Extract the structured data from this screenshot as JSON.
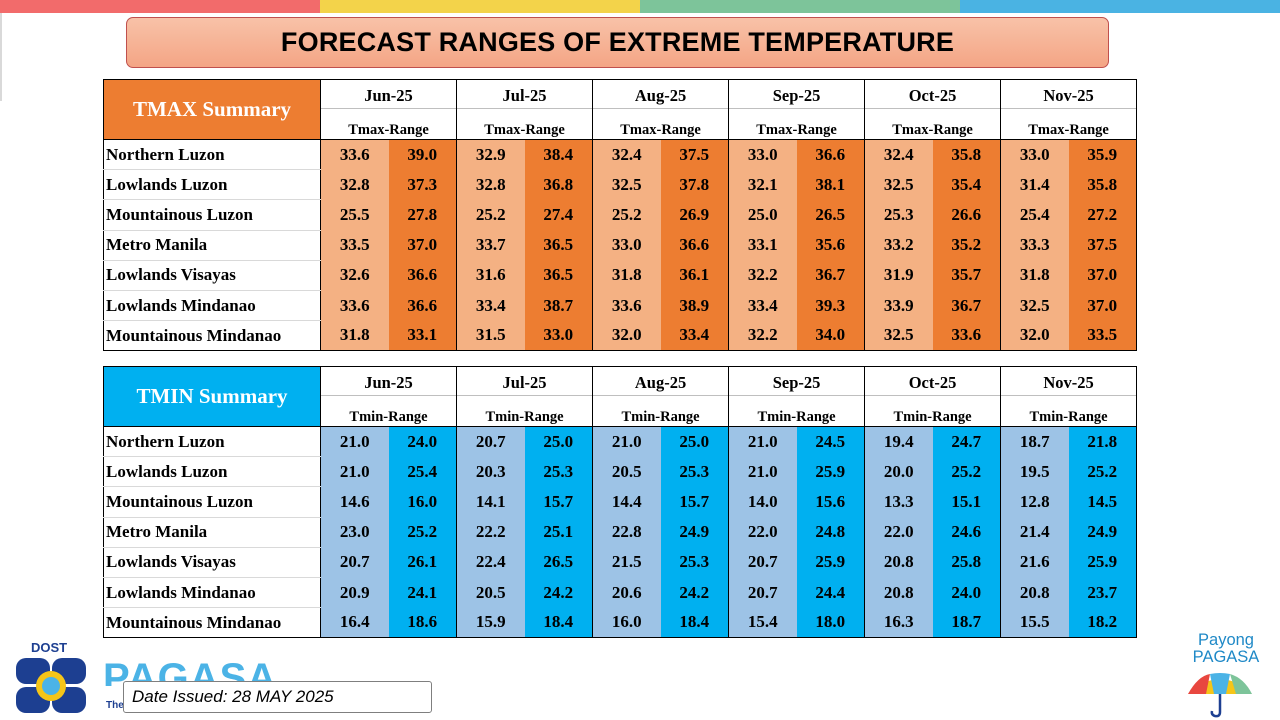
{
  "top_bar_colors": [
    "#f26b6b",
    "#f3d34a",
    "#7dc49a",
    "#4ab3e3"
  ],
  "title": "FORECAST RANGES OF EXTREME TEMPERATURE",
  "months": [
    "Jun-25",
    "Jul-25",
    "Aug-25",
    "Sep-25",
    "Oct-25",
    "Nov-25"
  ],
  "regions": [
    "Northern Luzon",
    "Lowlands Luzon",
    "Mountainous Luzon",
    "Metro Manila",
    "Lowlands Visayas",
    "Lowlands Mindanao",
    "Mountainous Mindanao"
  ],
  "tmax": {
    "label": "TMAX Summary",
    "range_label": "Tmax-Range",
    "label_color": "#ed7d31",
    "light_color": "#f4b183",
    "dark_color": "#ed7d31",
    "rows": [
      [
        [
          "33.6",
          "39.0"
        ],
        [
          "32.9",
          "38.4"
        ],
        [
          "32.4",
          "37.5"
        ],
        [
          "33.0",
          "36.6"
        ],
        [
          "32.4",
          "35.8"
        ],
        [
          "33.0",
          "35.9"
        ]
      ],
      [
        [
          "32.8",
          "37.3"
        ],
        [
          "32.8",
          "36.8"
        ],
        [
          "32.5",
          "37.8"
        ],
        [
          "32.1",
          "38.1"
        ],
        [
          "32.5",
          "35.4"
        ],
        [
          "31.4",
          "35.8"
        ]
      ],
      [
        [
          "25.5",
          "27.8"
        ],
        [
          "25.2",
          "27.4"
        ],
        [
          "25.2",
          "26.9"
        ],
        [
          "25.0",
          "26.5"
        ],
        [
          "25.3",
          "26.6"
        ],
        [
          "25.4",
          "27.2"
        ]
      ],
      [
        [
          "33.5",
          "37.0"
        ],
        [
          "33.7",
          "36.5"
        ],
        [
          "33.0",
          "36.6"
        ],
        [
          "33.1",
          "35.6"
        ],
        [
          "33.2",
          "35.2"
        ],
        [
          "33.3",
          "37.5"
        ]
      ],
      [
        [
          "32.6",
          "36.6"
        ],
        [
          "31.6",
          "36.5"
        ],
        [
          "31.8",
          "36.1"
        ],
        [
          "32.2",
          "36.7"
        ],
        [
          "31.9",
          "35.7"
        ],
        [
          "31.8",
          "37.0"
        ]
      ],
      [
        [
          "33.6",
          "36.6"
        ],
        [
          "33.4",
          "38.7"
        ],
        [
          "33.6",
          "38.9"
        ],
        [
          "33.4",
          "39.3"
        ],
        [
          "33.9",
          "36.7"
        ],
        [
          "32.5",
          "37.0"
        ]
      ],
      [
        [
          "31.8",
          "33.1"
        ],
        [
          "31.5",
          "33.0"
        ],
        [
          "32.0",
          "33.4"
        ],
        [
          "32.2",
          "34.0"
        ],
        [
          "32.5",
          "33.6"
        ],
        [
          "32.0",
          "33.5"
        ]
      ]
    ]
  },
  "tmin": {
    "label": "TMIN Summary",
    "range_label": "Tmin-Range",
    "label_color": "#00b0f0",
    "light_color": "#9dc3e6",
    "dark_color": "#00b0f0",
    "rows": [
      [
        [
          "21.0",
          "24.0"
        ],
        [
          "20.7",
          "25.0"
        ],
        [
          "21.0",
          "25.0"
        ],
        [
          "21.0",
          "24.5"
        ],
        [
          "19.4",
          "24.7"
        ],
        [
          "18.7",
          "21.8"
        ]
      ],
      [
        [
          "21.0",
          "25.4"
        ],
        [
          "20.3",
          "25.3"
        ],
        [
          "20.5",
          "25.3"
        ],
        [
          "21.0",
          "25.9"
        ],
        [
          "20.0",
          "25.2"
        ],
        [
          "19.5",
          "25.2"
        ]
      ],
      [
        [
          "14.6",
          "16.0"
        ],
        [
          "14.1",
          "15.7"
        ],
        [
          "14.4",
          "15.7"
        ],
        [
          "14.0",
          "15.6"
        ],
        [
          "13.3",
          "15.1"
        ],
        [
          "12.8",
          "14.5"
        ]
      ],
      [
        [
          "23.0",
          "25.2"
        ],
        [
          "22.2",
          "25.1"
        ],
        [
          "22.8",
          "24.9"
        ],
        [
          "22.0",
          "24.8"
        ],
        [
          "22.0",
          "24.6"
        ],
        [
          "21.4",
          "24.9"
        ]
      ],
      [
        [
          "20.7",
          "26.1"
        ],
        [
          "22.4",
          "26.5"
        ],
        [
          "21.5",
          "25.3"
        ],
        [
          "20.7",
          "25.9"
        ],
        [
          "20.8",
          "25.8"
        ],
        [
          "21.6",
          "25.9"
        ]
      ],
      [
        [
          "20.9",
          "24.1"
        ],
        [
          "20.5",
          "24.2"
        ],
        [
          "20.6",
          "24.2"
        ],
        [
          "20.7",
          "24.4"
        ],
        [
          "20.8",
          "24.0"
        ],
        [
          "20.8",
          "23.7"
        ]
      ],
      [
        [
          "16.4",
          "18.6"
        ],
        [
          "15.9",
          "18.4"
        ],
        [
          "16.0",
          "18.4"
        ],
        [
          "15.4",
          "18.0"
        ],
        [
          "16.3",
          "18.7"
        ],
        [
          "15.5",
          "18.2"
        ]
      ]
    ]
  },
  "footer": {
    "dost": "DOST",
    "pagasa": "PAGASA",
    "pagasa_sub": "The",
    "date_issued": "Date Issued: 28 MAY 2025",
    "payong_line1": "Payong",
    "payong_line2": "PAGASA"
  }
}
